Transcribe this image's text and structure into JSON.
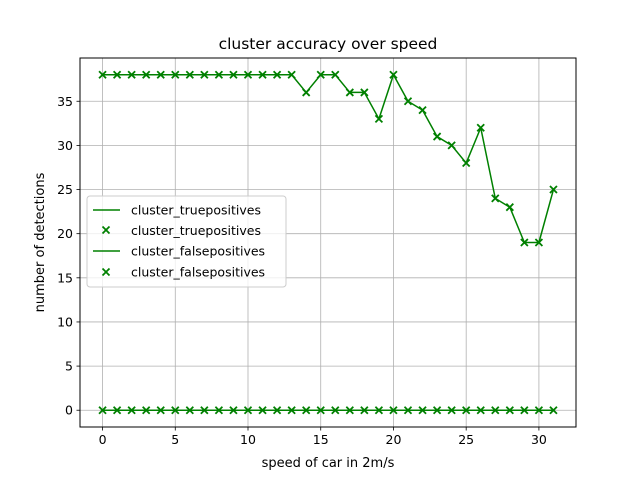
{
  "chart_data": {
    "type": "line",
    "title": "cluster accuracy over speed",
    "xlabel": "speed of car in 2m/s",
    "ylabel": "number of detections",
    "xlim": [
      -1.55,
      32.55
    ],
    "ylim": [
      -1.9,
      39.9
    ],
    "xticks": [
      0,
      5,
      10,
      15,
      20,
      25,
      30
    ],
    "yticks": [
      0,
      5,
      10,
      15,
      20,
      25,
      30,
      35
    ],
    "grid": true,
    "legend_position": "center-left",
    "color": "#008000",
    "x": [
      0,
      1,
      2,
      3,
      4,
      5,
      6,
      7,
      8,
      9,
      10,
      11,
      12,
      13,
      14,
      15,
      16,
      17,
      18,
      19,
      20,
      21,
      22,
      23,
      24,
      25,
      26,
      27,
      28,
      29,
      30,
      31
    ],
    "series": [
      {
        "name": "cluster_truepositives",
        "values": [
          38,
          38,
          38,
          38,
          38,
          38,
          38,
          38,
          38,
          38,
          38,
          38,
          38,
          38,
          36,
          38,
          38,
          36,
          36,
          33,
          38,
          35,
          34,
          31,
          30,
          28,
          32,
          24,
          23,
          19,
          19,
          25
        ]
      },
      {
        "name": "cluster_falsepositives",
        "values": [
          0,
          0,
          0,
          0,
          0,
          0,
          0,
          0,
          0,
          0,
          0,
          0,
          0,
          0,
          0,
          0,
          0,
          0,
          0,
          0,
          0,
          0,
          0,
          0,
          0,
          0,
          0,
          0,
          0,
          0,
          0,
          0
        ]
      }
    ],
    "legend": [
      {
        "label": "cluster_truepositives",
        "marker": "line"
      },
      {
        "label": "cluster_truepositives",
        "marker": "x"
      },
      {
        "label": "cluster_falsepositives",
        "marker": "line"
      },
      {
        "label": "cluster_falsepositives",
        "marker": "x"
      }
    ]
  }
}
